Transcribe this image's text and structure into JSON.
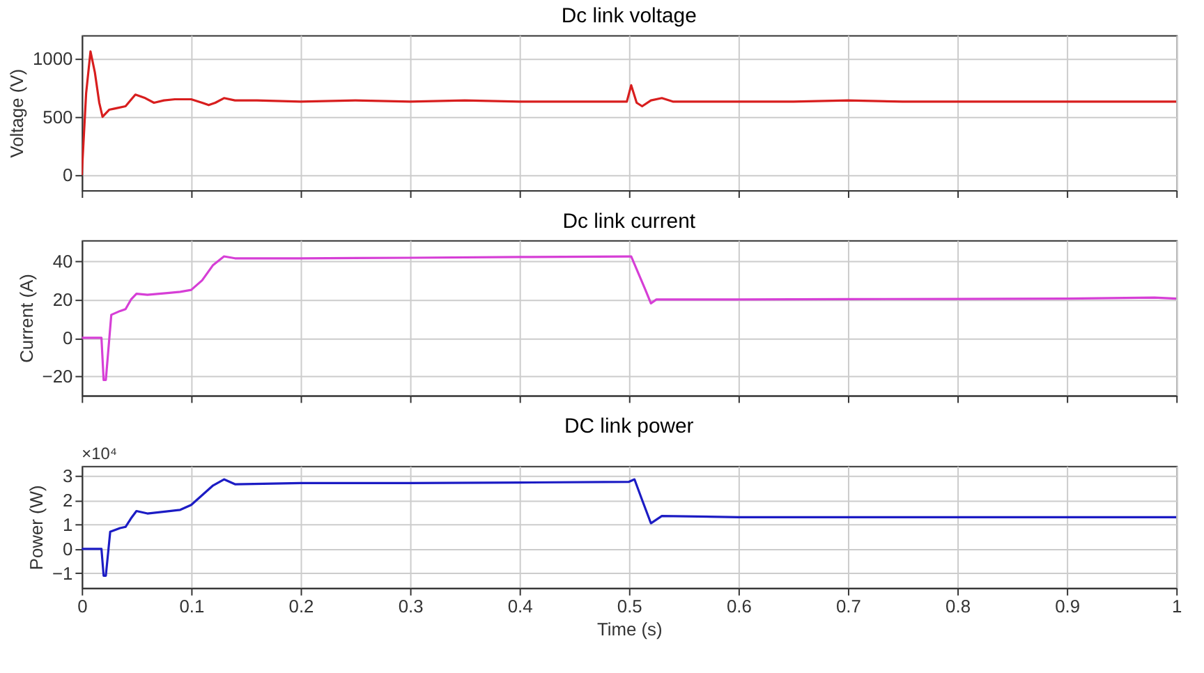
{
  "chart_data": [
    {
      "type": "line",
      "title": "Dc link voltage",
      "ylabel": "Voltage (V)",
      "tick_labels": "y",
      "grid": true,
      "xlim": [
        0,
        1
      ],
      "xticks": [
        0,
        0.1,
        0.2,
        0.3,
        0.4,
        0.5,
        0.6,
        0.7,
        0.8,
        0.9,
        1
      ],
      "ylim": [
        -130,
        1200
      ],
      "yticks": [
        0,
        500,
        1000
      ],
      "x": [
        0,
        0.004,
        0.008,
        0.012,
        0.016,
        0.019,
        0.025,
        0.03,
        0.04,
        0.049,
        0.058,
        0.066,
        0.075,
        0.085,
        0.1,
        0.11,
        0.116,
        0.122,
        0.13,
        0.14,
        0.16,
        0.2,
        0.25,
        0.3,
        0.35,
        0.4,
        0.45,
        0.498,
        0.502,
        0.507,
        0.512,
        0.52,
        0.53,
        0.54,
        0.56,
        0.6,
        0.65,
        0.7,
        0.75,
        0.8,
        0.85,
        0.9,
        0.95,
        1
      ],
      "series": [
        {
          "color": "#d81e1e",
          "values": [
            0,
            700,
            1060,
            880,
            620,
            500,
            560,
            570,
            590,
            690,
            660,
            620,
            640,
            650,
            650,
            620,
            600,
            620,
            660,
            640,
            640,
            630,
            640,
            630,
            640,
            630,
            630,
            630,
            770,
            620,
            590,
            640,
            660,
            630,
            630,
            630,
            630,
            640,
            630,
            630,
            630,
            630,
            630,
            630
          ]
        }
      ]
    },
    {
      "type": "line",
      "title": "Dc link current",
      "ylabel": "Current (A)",
      "tick_labels": "y",
      "grid": true,
      "xlim": [
        0,
        1
      ],
      "xticks": [
        0,
        0.1,
        0.2,
        0.3,
        0.4,
        0.5,
        0.6,
        0.7,
        0.8,
        0.9,
        1
      ],
      "ylim": [
        -30,
        51
      ],
      "yticks": [
        -20,
        0,
        20,
        40
      ],
      "x": [
        0,
        0.018,
        0.02,
        0.022,
        0.027,
        0.035,
        0.04,
        0.045,
        0.05,
        0.06,
        0.08,
        0.09,
        0.1,
        0.11,
        0.12,
        0.13,
        0.14,
        0.2,
        0.3,
        0.4,
        0.5,
        0.502,
        0.515,
        0.52,
        0.525,
        0.6,
        0.7,
        0.8,
        0.9,
        0.98,
        1
      ],
      "series": [
        {
          "color": "#d63fd6",
          "values": [
            0,
            0,
            -22,
            -22,
            12,
            14,
            15,
            20,
            23,
            22.5,
            23.5,
            24,
            25,
            30,
            38,
            42.5,
            41.5,
            41.5,
            41.8,
            42.2,
            42.5,
            42.5,
            25,
            18,
            20,
            20,
            20.2,
            20.3,
            20.5,
            21,
            20.5
          ]
        }
      ]
    },
    {
      "type": "line",
      "title": "DC link power",
      "ylabel": "Power (W)",
      "xlabel": "Time (s)",
      "annotations": [
        "×10⁴"
      ],
      "grid": true,
      "xlim": [
        0,
        1
      ],
      "xticks": [
        0,
        0.1,
        0.2,
        0.3,
        0.4,
        0.5,
        0.6,
        0.7,
        0.8,
        0.9,
        1
      ],
      "ylim": [
        -1.6,
        3.4
      ],
      "yticks": [
        -1,
        0,
        1,
        2,
        3
      ],
      "x": [
        0,
        0.018,
        0.02,
        0.022,
        0.026,
        0.035,
        0.04,
        0.045,
        0.05,
        0.06,
        0.08,
        0.09,
        0.1,
        0.11,
        0.12,
        0.13,
        0.14,
        0.2,
        0.3,
        0.4,
        0.5,
        0.505,
        0.512,
        0.52,
        0.53,
        0.6,
        0.7,
        0.8,
        0.9,
        1
      ],
      "series": [
        {
          "color": "#1c1cc4",
          "values": [
            0,
            0,
            -1.1,
            -1.1,
            0.7,
            0.85,
            0.9,
            1.25,
            1.55,
            1.45,
            1.55,
            1.6,
            1.8,
            2.2,
            2.6,
            2.85,
            2.65,
            2.7,
            2.7,
            2.72,
            2.75,
            2.85,
            2.0,
            1.05,
            1.35,
            1.3,
            1.3,
            1.3,
            1.3,
            1.3
          ]
        }
      ]
    }
  ]
}
